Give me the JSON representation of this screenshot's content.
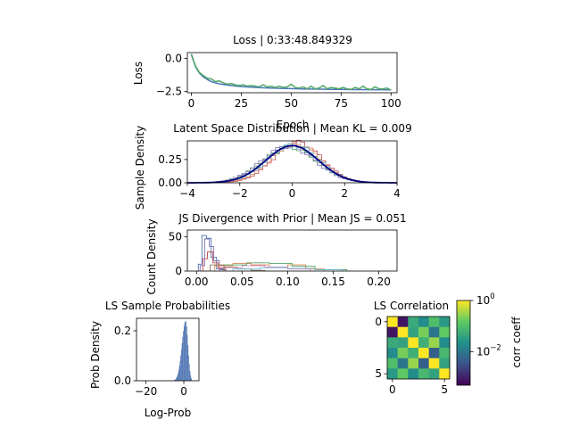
{
  "chart_data": [
    {
      "id": "loss",
      "type": "line",
      "title": "Loss | 0:33:48.849329",
      "xlabel": "Epoch",
      "ylabel": "Loss",
      "xlim": [
        -2,
        103
      ],
      "ylim": [
        -2.6,
        0.45
      ],
      "xticks": [
        0,
        25,
        50,
        75,
        100
      ],
      "xtick_labels": [
        "0",
        "25",
        "50",
        "75",
        "100"
      ],
      "yticks": [
        0.0,
        -2.5
      ],
      "ytick_labels": [
        "0.0",
        "−2.5"
      ],
      "series": [
        {
          "color": "#4878b8",
          "x": [
            0,
            2,
            4,
            6,
            8,
            10,
            12,
            15,
            18,
            21,
            25,
            30,
            35,
            40,
            45,
            50,
            55,
            60,
            65,
            70,
            75,
            80,
            85,
            90,
            95,
            100
          ],
          "y": [
            0.3,
            -0.6,
            -1.1,
            -1.4,
            -1.6,
            -1.75,
            -1.85,
            -1.95,
            -2.02,
            -2.08,
            -2.13,
            -2.18,
            -2.22,
            -2.25,
            -2.27,
            -2.29,
            -2.31,
            -2.32,
            -2.33,
            -2.34,
            -2.35,
            -2.36,
            -2.36,
            -2.37,
            -2.37,
            -2.38
          ]
        },
        {
          "color": "#55a868",
          "x": [
            0,
            2,
            4,
            6,
            8,
            10,
            12,
            14,
            16,
            18,
            20,
            22,
            24,
            26,
            28,
            30,
            32,
            34,
            36,
            38,
            40,
            42,
            44,
            46,
            48,
            50,
            52,
            54,
            56,
            58,
            60,
            62,
            64,
            66,
            68,
            70,
            72,
            74,
            76,
            78,
            80,
            82,
            84,
            86,
            88,
            90,
            92,
            94,
            96,
            98,
            100
          ],
          "y": [
            0.35,
            -0.55,
            -1.05,
            -1.3,
            -1.5,
            -1.55,
            -1.75,
            -1.7,
            -1.85,
            -1.95,
            -1.9,
            -2.0,
            -2.05,
            -2.0,
            -2.1,
            -2.05,
            -2.1,
            -2.15,
            -2.0,
            -2.15,
            -2.1,
            -2.2,
            -2.1,
            -2.2,
            -2.15,
            -1.95,
            -2.2,
            -2.25,
            -2.15,
            -2.3,
            -2.1,
            -2.3,
            -2.25,
            -2.05,
            -2.3,
            -2.2,
            -2.25,
            -2.3,
            -2.2,
            -2.3,
            -2.35,
            -2.2,
            -2.3,
            -2.1,
            -2.3,
            -2.35,
            -2.15,
            -2.3,
            -2.3,
            -2.25,
            -2.4
          ]
        }
      ]
    },
    {
      "id": "latent",
      "type": "line",
      "title": "Latent Space Distribution | Mean KL = 0.009",
      "xlabel": "",
      "ylabel": "Sample Density",
      "xlim": [
        -4,
        4
      ],
      "ylim": [
        0,
        0.45
      ],
      "xticks": [
        -4,
        -2,
        0,
        2,
        4
      ],
      "xtick_labels": [
        "−4",
        "−2",
        "0",
        "2",
        "4"
      ],
      "yticks": [
        0.0,
        0.25
      ],
      "ytick_labels": [
        "0.00",
        "0.25"
      ],
      "prior": {
        "color": "#000080",
        "mean": 0,
        "std": 1
      },
      "series": [
        {
          "color": "#4c72b0",
          "mean": 0.0,
          "std": 1.0
        },
        {
          "color": "#dd8452",
          "mean": 0.15,
          "std": 0.95
        },
        {
          "color": "#55a868",
          "mean": -0.1,
          "std": 1.05
        },
        {
          "color": "#c44e52",
          "mean": 0.2,
          "std": 0.92
        },
        {
          "color": "#8172b3",
          "mean": -0.15,
          "std": 1.02
        },
        {
          "color": "#64b5cd",
          "mean": 0.05,
          "std": 0.98
        }
      ]
    },
    {
      "id": "js",
      "type": "histogram",
      "title": "JS Divergence with Prior | Mean JS = 0.051",
      "xlabel": "",
      "ylabel": "Count Density",
      "xlim": [
        -0.01,
        0.22
      ],
      "ylim": [
        0,
        60
      ],
      "xticks": [
        0.0,
        0.05,
        0.1,
        0.15,
        0.2
      ],
      "xtick_labels": [
        "0.00",
        "0.05",
        "0.10",
        "0.15",
        "0.20"
      ],
      "yticks": [
        0,
        50
      ],
      "ytick_labels": [
        "0",
        "50"
      ],
      "series": [
        {
          "color": "#4c72b0",
          "edges": [
            0.002,
            0.006,
            0.011,
            0.016,
            0.022,
            0.03
          ],
          "counts": [
            10,
            52,
            48,
            20,
            3
          ]
        },
        {
          "color": "#8172b3",
          "edges": [
            0.004,
            0.009,
            0.014,
            0.019,
            0.025,
            0.032
          ],
          "counts": [
            8,
            47,
            36,
            15,
            2
          ]
        },
        {
          "color": "#c44e52",
          "edges": [
            0.007,
            0.012,
            0.018,
            0.024,
            0.032
          ],
          "counts": [
            18,
            28,
            12,
            4
          ]
        },
        {
          "color": "#dd8452",
          "edges": [
            0.02,
            0.04,
            0.06,
            0.08,
            0.1,
            0.12,
            0.14
          ],
          "counts": [
            8,
            11,
            9,
            6,
            9,
            3
          ]
        },
        {
          "color": "#55a868",
          "edges": [
            0.03,
            0.055,
            0.08,
            0.105,
            0.13,
            0.165
          ],
          "counts": [
            9,
            12,
            11,
            7,
            2
          ]
        },
        {
          "color": "#937860",
          "edges": [
            0.015,
            0.03,
            0.045,
            0.06,
            0.075
          ],
          "counts": [
            9,
            6,
            3,
            1
          ]
        },
        {
          "color": "#da8bc3",
          "edges": [
            0.025,
            0.05,
            0.075,
            0.1,
            0.125
          ],
          "counts": [
            5,
            8,
            6,
            3
          ]
        },
        {
          "color": "#64b5cd",
          "edges": [
            0.04,
            0.07,
            0.1,
            0.13,
            0.16
          ],
          "counts": [
            3,
            5,
            4,
            2
          ]
        }
      ]
    },
    {
      "id": "logprob",
      "type": "histogram",
      "title": "LS Sample Probabilities",
      "xlabel": "Log-Prob",
      "ylabel": "Prob Density",
      "xlim": [
        -25,
        8
      ],
      "ylim": [
        0,
        0.25
      ],
      "xticks": [
        -20,
        0
      ],
      "xtick_labels": [
        "−20",
        "0"
      ],
      "yticks": [
        0.0,
        0.2
      ],
      "ytick_labels": [
        "0.0",
        "0.2"
      ],
      "color": "#4c72b0",
      "peak": 0.24,
      "mode": 1.0,
      "left_scale": 2.0,
      "right_scale": 1.2,
      "range": [
        -6,
        4
      ]
    },
    {
      "id": "corr",
      "type": "heatmap",
      "title": "LS Correlation",
      "xticks": [
        0,
        5
      ],
      "xtick_labels": [
        "0",
        "5"
      ],
      "yticks": [
        0,
        5
      ],
      "ytick_labels": [
        "0",
        "5"
      ],
      "colorbar": {
        "label": "corr coeff",
        "scale": "log",
        "tick_labels": [
          "10^0",
          "10^-2"
        ],
        "tick_values": [
          1,
          0.01
        ],
        "vmin": 0.0005,
        "vmax": 1
      },
      "matrix": [
        [
          1.0,
          0.0008,
          0.05,
          0.02,
          0.1,
          0.03
        ],
        [
          0.0008,
          1.0,
          0.04,
          0.2,
          0.01,
          0.15
        ],
        [
          0.05,
          0.04,
          1.0,
          0.06,
          0.3,
          0.02
        ],
        [
          0.02,
          0.2,
          0.06,
          1.0,
          0.005,
          0.08
        ],
        [
          0.1,
          0.01,
          0.3,
          0.005,
          1.0,
          0.04
        ],
        [
          0.03,
          0.15,
          0.02,
          0.08,
          0.04,
          1.0
        ]
      ]
    }
  ]
}
